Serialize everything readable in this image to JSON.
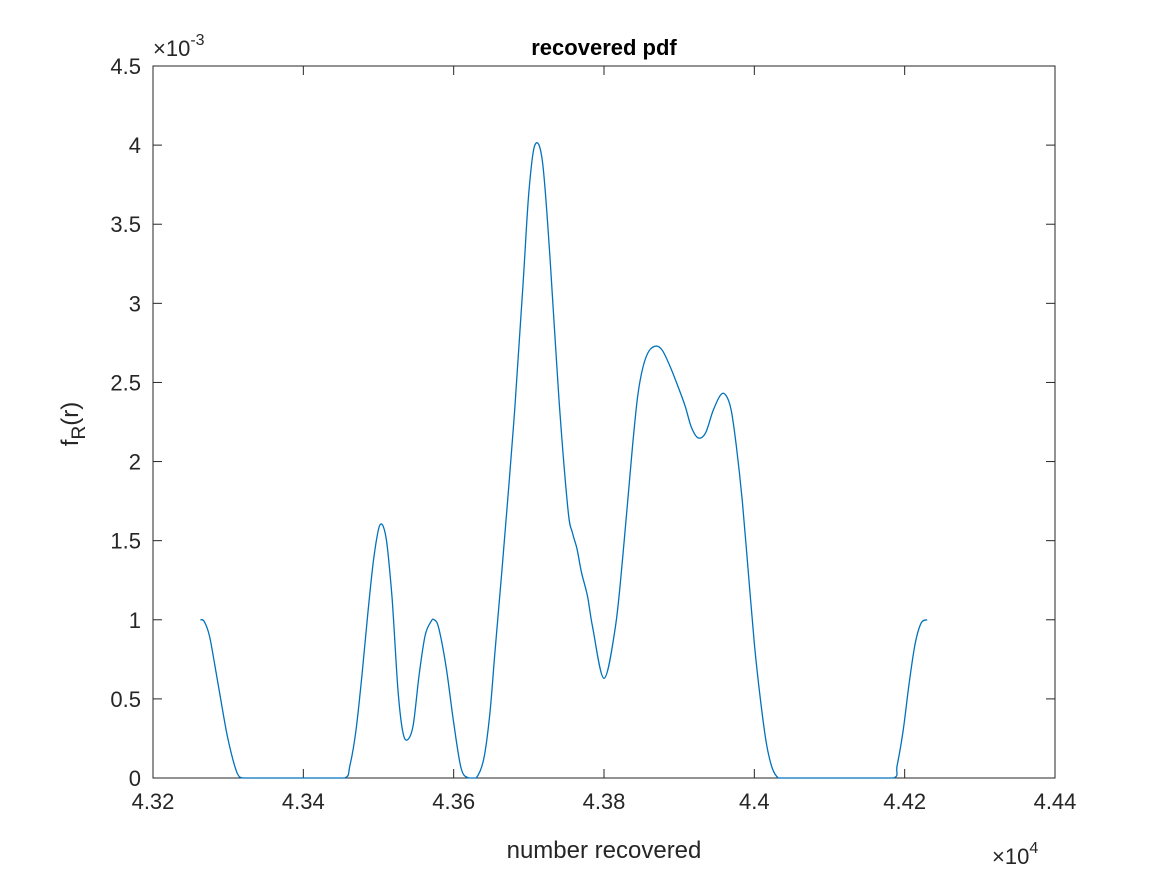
{
  "chart_data": {
    "type": "line",
    "title": "recovered pdf",
    "xlabel": "number recovered",
    "ylabel": {
      "main": "f",
      "subscript": "R",
      "suffix": "(r)"
    },
    "x_exponent": {
      "base": "×10",
      "power": "4"
    },
    "y_exponent": {
      "base": "×10",
      "power": "-3"
    },
    "xlim": [
      43200,
      44400
    ],
    "ylim": [
      0,
      4.5
    ],
    "x_ticks": [
      43200,
      43400,
      43600,
      43800,
      44000,
      44200,
      44400
    ],
    "x_tick_labels": [
      "4.32",
      "4.34",
      "4.36",
      "4.38",
      "4.4",
      "4.42",
      "4.44"
    ],
    "y_ticks": [
      0,
      0.5,
      1,
      1.5,
      2,
      2.5,
      3,
      3.5,
      4,
      4.5
    ],
    "y_tick_labels": [
      "0",
      "0.5",
      "1",
      "1.5",
      "2",
      "2.5",
      "3",
      "3.5",
      "4",
      "4.5"
    ],
    "grid": false,
    "line_color": "#0072BD",
    "series": [
      {
        "x": [
          43263,
          43268,
          43275,
          43282,
          43290,
          43300,
          43312,
          43320,
          43340,
          43380,
          43420,
          43455,
          43462,
          43470,
          43478,
          43486,
          43494,
          43502,
          43510,
          43517,
          43520,
          43526,
          43532,
          43538,
          43546,
          43554,
          43562,
          43570,
          43574,
          43580,
          43590,
          43600,
          43610,
          43620,
          43630,
          43640,
          43648,
          43655,
          43664,
          43680,
          43692,
          43700,
          43708,
          43718,
          43728,
          43740,
          43752,
          43758,
          43764,
          43770,
          43778,
          43785,
          43800,
          43815,
          43825,
          43838,
          43845,
          43852,
          43860,
          43870,
          43878,
          43888,
          43898,
          43908,
          43916,
          43925,
          43935,
          43945,
          43955,
          43962,
          43969,
          43976,
          43984,
          43992,
          44000,
          44008,
          44016,
          44024,
          44032,
          44040,
          44050,
          44062,
          44072,
          44080,
          44140,
          44185,
          44190,
          44198,
          44206,
          44214,
          44222,
          44230
        ],
        "y": [
          1.0,
          0.99,
          0.9,
          0.72,
          0.5,
          0.24,
          0.03,
          0.0,
          0.0,
          0.0,
          0.0,
          0.0,
          0.08,
          0.3,
          0.65,
          1.05,
          1.4,
          1.6,
          1.52,
          1.2,
          1.0,
          0.55,
          0.3,
          0.24,
          0.33,
          0.65,
          0.9,
          0.99,
          1.0,
          0.95,
          0.7,
          0.35,
          0.06,
          0.0,
          0.0,
          0.12,
          0.4,
          0.8,
          1.3,
          2.25,
          3.1,
          3.7,
          4.0,
          3.9,
          3.3,
          2.4,
          1.7,
          1.55,
          1.45,
          1.3,
          1.15,
          0.95,
          0.63,
          0.95,
          1.4,
          2.1,
          2.42,
          2.6,
          2.7,
          2.73,
          2.7,
          2.6,
          2.48,
          2.35,
          2.22,
          2.15,
          2.18,
          2.32,
          2.42,
          2.42,
          2.33,
          2.1,
          1.75,
          1.3,
          0.85,
          0.5,
          0.22,
          0.06,
          0.0,
          0.0,
          0.0,
          0.0,
          0.0,
          0.0,
          0.0,
          0.0,
          0.08,
          0.3,
          0.6,
          0.85,
          0.98,
          1.0
        ]
      }
    ]
  }
}
